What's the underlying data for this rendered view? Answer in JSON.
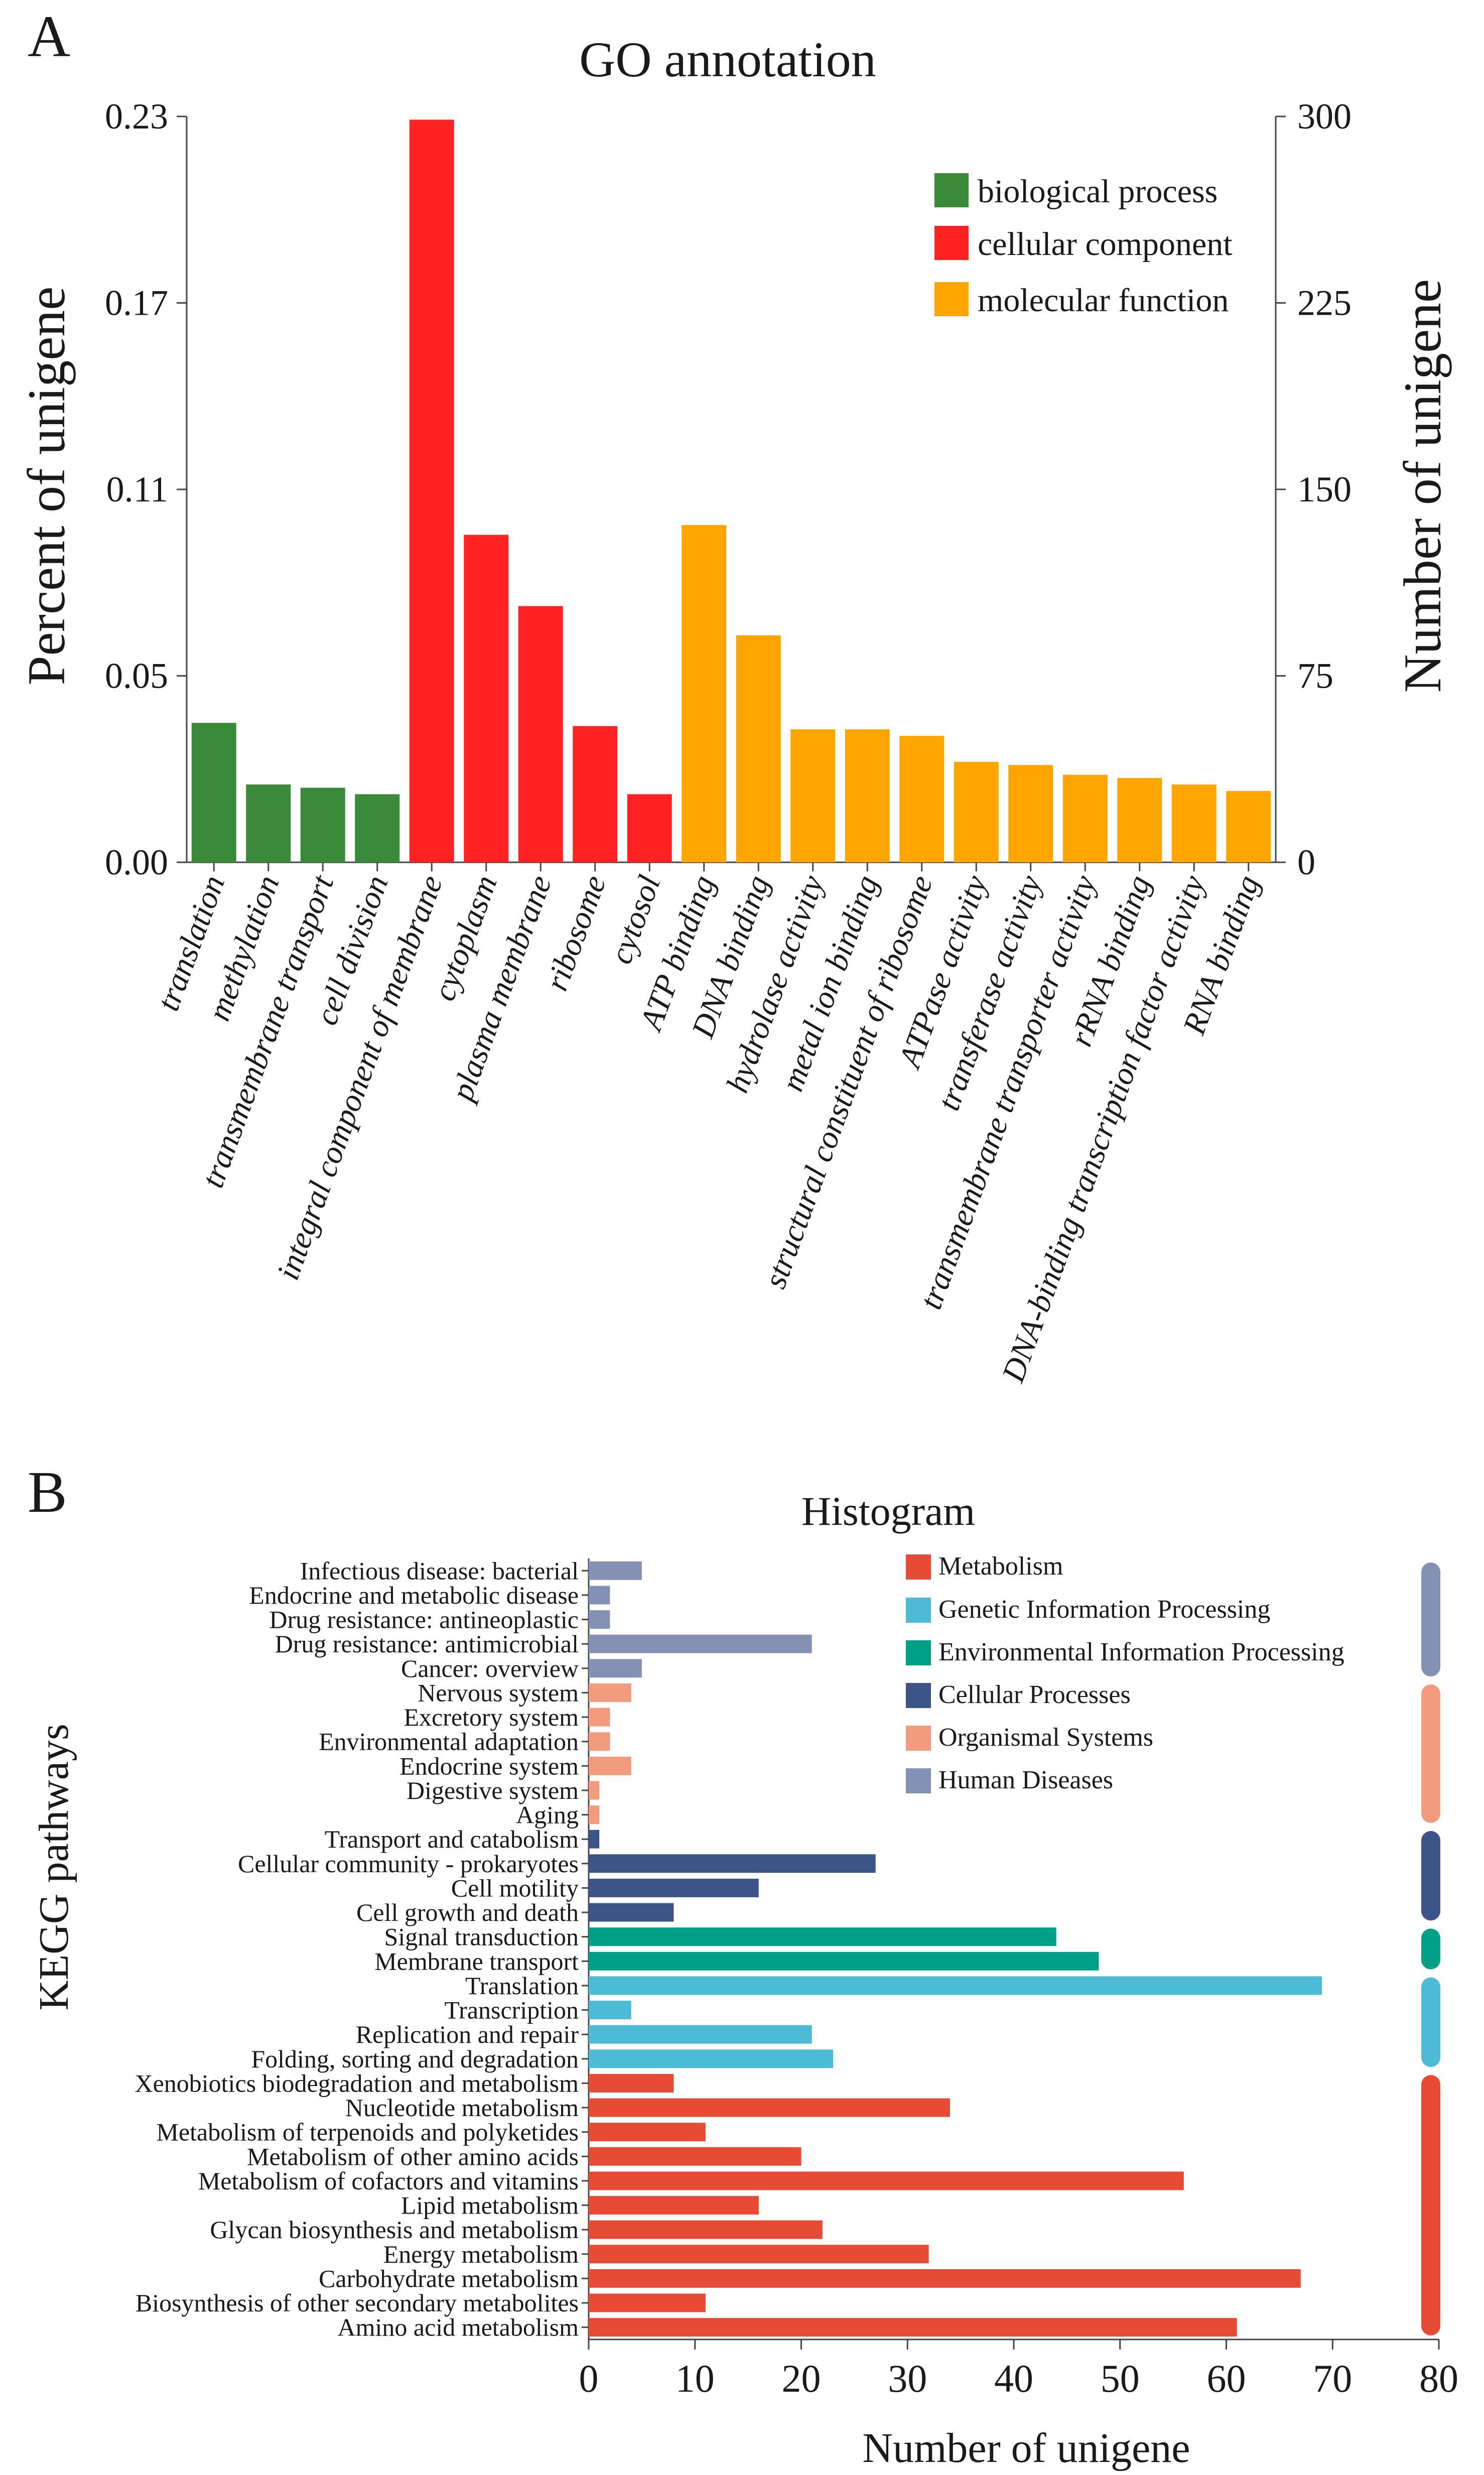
{
  "panel_a_letter": "A",
  "panel_b_letter": "B",
  "chart_data": [
    {
      "type": "bar",
      "title": "GO annotation",
      "ylabel": "Percent of unigene",
      "y2label": "Number of unigene",
      "ylim": [
        0,
        0.23
      ],
      "y_ticks": [
        "0.00",
        "0.05",
        "0.11",
        "0.17",
        "0.23"
      ],
      "y_tick_values": [
        0,
        0.0575,
        0.115,
        0.1725,
        0.23
      ],
      "y2lim": [
        0,
        300
      ],
      "y2_ticks": [
        "0",
        "75",
        "150",
        "225",
        "300"
      ],
      "y2_tick_values": [
        0,
        75,
        150,
        225,
        300
      ],
      "legend_position": "top-right",
      "categories": [
        "translation",
        "methylation",
        "transmembrane transport",
        "cell division",
        "integral component of membrane",
        "cytoplasm",
        "plasma membrane",
        "ribosome",
        "cytosol",
        "ATP binding",
        "DNA binding",
        "hydrolase activity",
        "metal ion binding",
        "structural constituent of ribosome",
        "ATPase activity",
        "transferase activity",
        "transmembrane transporter activity",
        "rRNA binding",
        "DNA-binding transcription factor activity",
        "RNA binding"
      ],
      "values": [
        0.043,
        0.024,
        0.023,
        0.021,
        0.229,
        0.101,
        0.079,
        0.042,
        0.021,
        0.104,
        0.07,
        0.041,
        0.041,
        0.039,
        0.031,
        0.03,
        0.027,
        0.026,
        0.024,
        0.022
      ],
      "groups": [
        "bp",
        "bp",
        "bp",
        "bp",
        "cc",
        "cc",
        "cc",
        "cc",
        "cc",
        "mf",
        "mf",
        "mf",
        "mf",
        "mf",
        "mf",
        "mf",
        "mf",
        "mf",
        "mf",
        "mf"
      ],
      "series": [
        {
          "key": "bp",
          "name": "biological process",
          "color": "#3a8a3a"
        },
        {
          "key": "cc",
          "name": "cellular component",
          "color": "#ff2222"
        },
        {
          "key": "mf",
          "name": "molecular function",
          "color": "#ffa500"
        }
      ]
    },
    {
      "type": "bar",
      "orientation": "horizontal",
      "title": "Histogram",
      "xlabel": "Number of unigene",
      "ylabel": "KEGG pathways",
      "xlim": [
        0,
        80
      ],
      "x_ticks": [
        "0",
        "10",
        "20",
        "30",
        "40",
        "50",
        "60",
        "70",
        "80"
      ],
      "x_tick_values": [
        0,
        10,
        20,
        30,
        40,
        50,
        60,
        70,
        80
      ],
      "legend_position": "top-right",
      "categories": [
        "Infectious disease: bacterial",
        "Endocrine and metabolic disease",
        "Drug resistance: antineoplastic",
        "Drug resistance: antimicrobial",
        "Cancer: overview",
        "Nervous system",
        "Excretory system",
        "Environmental adaptation",
        "Endocrine system",
        "Digestive system",
        "Aging",
        "Transport and catabolism",
        "Cellular community - prokaryotes",
        "Cell motility",
        "Cell growth and death",
        "Signal transduction",
        "Membrane transport",
        "Translation",
        "Transcription",
        "Replication and repair",
        "Folding, sorting and degradation",
        "Xenobiotics biodegradation and metabolism",
        "Nucleotide metabolism",
        "Metabolism of terpenoids and polyketides",
        "Metabolism of other amino acids",
        "Metabolism of cofactors and vitamins",
        "Lipid metabolism",
        "Glycan biosynthesis and metabolism",
        "Energy metabolism",
        "Carbohydrate metabolism",
        "Biosynthesis of other secondary metabolites",
        "Amino acid metabolism"
      ],
      "values": [
        5,
        2,
        2,
        21,
        5,
        4,
        2,
        2,
        4,
        1,
        1,
        1,
        27,
        16,
        8,
        44,
        48,
        69,
        4,
        21,
        23,
        8,
        34,
        11,
        20,
        56,
        16,
        22,
        32,
        67,
        11,
        61
      ],
      "groups": [
        "hd",
        "hd",
        "hd",
        "hd",
        "hd",
        "os",
        "os",
        "os",
        "os",
        "os",
        "os",
        "cp",
        "cp",
        "cp",
        "cp",
        "eip",
        "eip",
        "gip",
        "gip",
        "gip",
        "gip",
        "m",
        "m",
        "m",
        "m",
        "m",
        "m",
        "m",
        "m",
        "m",
        "m",
        "m"
      ],
      "series": [
        {
          "key": "m",
          "name": "Metabolism",
          "color": "#e64b35"
        },
        {
          "key": "gip",
          "name": "Genetic Information Processing",
          "color": "#4dbbd5"
        },
        {
          "key": "eip",
          "name": "Environmental Information Processing",
          "color": "#00a087"
        },
        {
          "key": "cp",
          "name": "Cellular Processes",
          "color": "#3c5488"
        },
        {
          "key": "os",
          "name": "Organismal Systems",
          "color": "#f39b7f"
        },
        {
          "key": "hd",
          "name": "Human Diseases",
          "color": "#8491b4"
        }
      ]
    }
  ]
}
